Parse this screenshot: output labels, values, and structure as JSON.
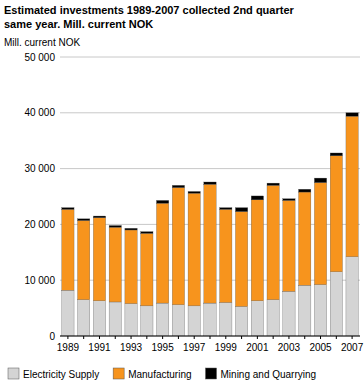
{
  "chart_data": {
    "type": "bar",
    "stacked": true,
    "grid": true,
    "legend": "bottom",
    "title": "Estimated investments 1989-2007 collected 2nd quarter same year. Mill. current NOK",
    "y_label": "Mill. current NOK",
    "categories": [
      "1989",
      null,
      "1991",
      null,
      "1993",
      null,
      "1995",
      null,
      "1997",
      null,
      "1999",
      null,
      "2001",
      null,
      "2003",
      null,
      "2005",
      null,
      "2007"
    ],
    "series": [
      {
        "name": "Electricity Supply",
        "color": "#d4d4d4",
        "values": [
          8200,
          6500,
          6300,
          6100,
          5800,
          5400,
          5900,
          5600,
          5400,
          5900,
          6000,
          5300,
          6300,
          6500,
          8000,
          9100,
          9200,
          11500,
          14200
        ]
      },
      {
        "name": "Manufacturing",
        "color": "#f7941d",
        "values": [
          14500,
          14200,
          14900,
          13400,
          13200,
          13000,
          17900,
          21000,
          20200,
          21300,
          16700,
          17000,
          18100,
          20500,
          16300,
          16700,
          18300,
          20800,
          25200
        ]
      },
      {
        "name": "Mining and Quarrying",
        "color": "#000000",
        "values": [
          300,
          300,
          300,
          300,
          300,
          300,
          500,
          400,
          300,
          400,
          300,
          700,
          700,
          400,
          300,
          500,
          800,
          500,
          600
        ]
      }
    ],
    "ylim": [
      0,
      50000
    ],
    "yticks": [
      0,
      {
        "value": 10000,
        "label": "10 000"
      },
      {
        "value": 20000,
        "label": "20 000"
      },
      {
        "value": 30000,
        "label": "30 000"
      },
      {
        "value": 40000,
        "label": "40 000"
      },
      {
        "value": 50000,
        "label": "50 000"
      }
    ]
  }
}
